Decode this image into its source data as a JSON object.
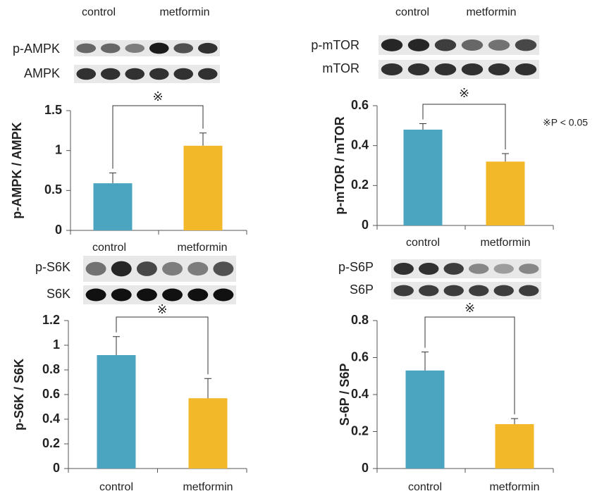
{
  "note": "※P < 0.05",
  "chart_data": [
    {
      "type": "bar",
      "y_label": "p-AMPK / AMPK",
      "blot_header": [
        "control",
        "metformin"
      ],
      "blot_labels": [
        "p-AMPK",
        "AMPK"
      ],
      "categories": [
        null,
        null
      ],
      "values": [
        0.59,
        1.06
      ],
      "errors": [
        0.13,
        0.16
      ],
      "colors": [
        "#4ba5c1",
        "#f3b72a"
      ],
      "ylim": [
        0,
        1.5
      ],
      "yticks": [
        0,
        0.5,
        1,
        1.5
      ],
      "significance": "※"
    },
    {
      "type": "bar",
      "y_label": "p-mTOR / mTOR",
      "blot_header": [
        "control",
        "metformin"
      ],
      "blot_labels": [
        "p-mTOR",
        "mTOR"
      ],
      "categories": [
        "control",
        "metformin"
      ],
      "values": [
        0.48,
        0.32
      ],
      "errors": [
        0.03,
        0.04
      ],
      "colors": [
        "#4ba5c1",
        "#f3b72a"
      ],
      "ylim": [
        0,
        0.6
      ],
      "yticks": [
        0,
        0.2,
        0.4,
        0.6
      ],
      "significance": "※"
    },
    {
      "type": "bar",
      "y_label": "p-S6K / S6K",
      "blot_header": [
        "control",
        "metformin"
      ],
      "blot_labels": [
        "p-S6K",
        "S6K"
      ],
      "categories": [
        "control",
        "metformin"
      ],
      "values": [
        0.92,
        0.57
      ],
      "errors": [
        0.15,
        0.16
      ],
      "colors": [
        "#4ba5c1",
        "#f3b72a"
      ],
      "ylim": [
        0,
        1.2
      ],
      "yticks": [
        0,
        0.2,
        0.4,
        0.6,
        0.8,
        1,
        1.2
      ],
      "significance": "※"
    },
    {
      "type": "bar",
      "y_label": "S-6P / S6P",
      "blot_labels": [
        "p-S6P",
        "S6P"
      ],
      "categories": [
        "control",
        "metformin"
      ],
      "values": [
        0.53,
        0.24
      ],
      "errors": [
        0.1,
        0.03
      ],
      "colors": [
        "#4ba5c1",
        "#f3b72a"
      ],
      "ylim": [
        0,
        0.8
      ],
      "yticks": [
        0,
        0.2,
        0.4,
        0.6,
        0.8
      ],
      "significance": "※"
    }
  ]
}
